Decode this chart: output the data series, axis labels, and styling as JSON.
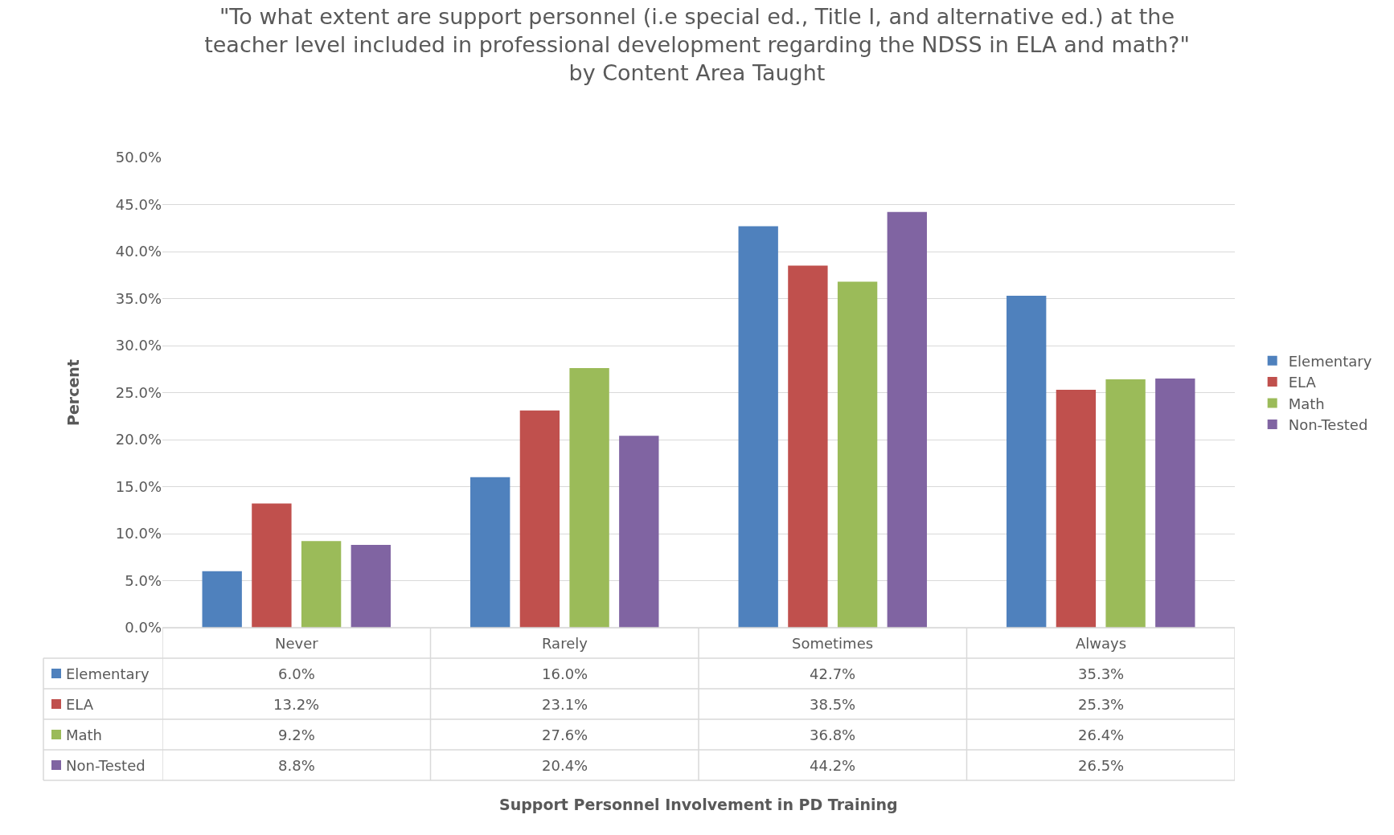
{
  "chart_data": {
    "type": "bar",
    "title": "\"To what extent are support personnel (i.e special ed., Title I, and alternative ed.) at the\nteacher level included in professional development regarding the NDSS in ELA and math?\"\nby Content Area Taught",
    "annotations": [
      "Support Personnel Involvement in PD Training"
    ],
    "ylabel": "Percent",
    "categories": [
      "Never",
      "Rarely",
      "Sometimes",
      "Always"
    ],
    "series": [
      {
        "name": "Elementary",
        "color": "#4f81bd",
        "values": [
          6.0,
          16.0,
          42.7,
          35.3
        ],
        "value_labels": [
          "6.0%",
          "16.0%",
          "42.7%",
          "35.3%"
        ]
      },
      {
        "name": "ELA",
        "color": "#c0504d",
        "values": [
          13.2,
          23.1,
          38.5,
          25.3
        ],
        "value_labels": [
          "13.2%",
          "23.1%",
          "38.5%",
          "25.3%"
        ]
      },
      {
        "name": "Math",
        "color": "#9bbb59",
        "values": [
          9.2,
          27.6,
          36.8,
          26.4
        ],
        "value_labels": [
          "9.2%",
          "27.6%",
          "36.8%",
          "26.4%"
        ]
      },
      {
        "name": "Non-Tested",
        "color": "#8064a2",
        "values": [
          8.8,
          20.4,
          44.2,
          26.5
        ],
        "value_labels": [
          "8.8%",
          "20.4%",
          "44.2%",
          "26.5%"
        ]
      }
    ],
    "ylim": [
      0,
      50
    ],
    "yticks": [
      {
        "value": 0,
        "label": "0.0%"
      },
      {
        "value": 5,
        "label": "5.0%"
      },
      {
        "value": 10,
        "label": "10.0%"
      },
      {
        "value": 15,
        "label": "15.0%"
      },
      {
        "value": 20,
        "label": "20.0%"
      },
      {
        "value": 25,
        "label": "25.0%"
      },
      {
        "value": 30,
        "label": "30.0%"
      },
      {
        "value": 35,
        "label": "35.0%"
      },
      {
        "value": 40,
        "label": "40.0%"
      },
      {
        "value": 45,
        "label": "45.0%"
      },
      {
        "value": 50,
        "label": "50.0%"
      }
    ],
    "grid": "y",
    "legend": "right"
  }
}
